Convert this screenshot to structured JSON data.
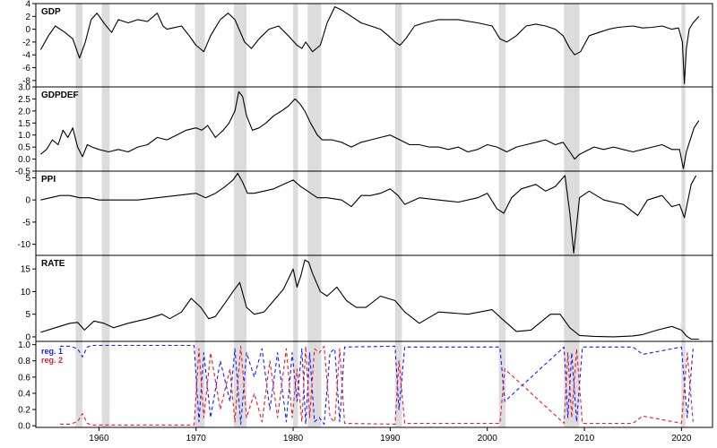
{
  "chart_data": {
    "type": "line",
    "x_axis": {
      "range": [
        1953.5,
        2023.2
      ],
      "ticks": [
        1960,
        1970,
        1980,
        1990,
        2000,
        2010,
        2020
      ],
      "tick_labels": [
        "1960",
        "1970",
        "1980",
        "1990",
        "2000",
        "2010",
        "2020"
      ]
    },
    "recessions": [
      [
        1957.6,
        1958.3
      ],
      [
        1960.3,
        1961.1
      ],
      [
        1969.9,
        1970.9
      ],
      [
        1973.9,
        1975.2
      ],
      [
        1980.0,
        1980.5
      ],
      [
        1981.5,
        1982.9
      ],
      [
        1990.5,
        1991.2
      ],
      [
        2001.2,
        2001.9
      ],
      [
        2007.9,
        2009.5
      ],
      [
        2020.0,
        2020.4
      ]
    ],
    "panels": [
      {
        "name": "GDP",
        "ylim": [
          -9,
          4
        ],
        "yticks": [
          4,
          2,
          0,
          -2,
          -4,
          -6,
          -8
        ],
        "ytick_labels": [
          "4",
          "2",
          "0",
          "-2",
          "-4",
          "-6",
          "-8"
        ],
        "series": [
          {
            "color": "#000000",
            "x": [
              1954.0,
              1954.8,
              1955.5,
              1956.5,
              1957.3,
              1958.0,
              1958.6,
              1959.2,
              1959.8,
              1960.5,
              1961.3,
              1962.0,
              1963.0,
              1964.0,
              1965.0,
              1966.0,
              1966.6,
              1967.0,
              1967.6,
              1968.5,
              1969.3,
              1970.0,
              1970.8,
              1971.5,
              1972.5,
              1973.3,
              1974.0,
              1975.0,
              1975.7,
              1976.5,
              1977.5,
              1978.5,
              1979.5,
              1980.4,
              1980.9,
              1981.3,
              1982.0,
              1982.8,
              1983.5,
              1984.3,
              1985.0,
              1986.0,
              1987.0,
              1988.0,
              1989.0,
              1989.8,
              1990.5,
              1991.0,
              1991.6,
              1992.5,
              1993.5,
              1995.0,
              1997.0,
              1999.0,
              2000.5,
              2001.3,
              2002.0,
              2003.0,
              2004.0,
              2005.0,
              2006.0,
              2007.0,
              2007.8,
              2008.5,
              2009.0,
              2009.6,
              2010.5,
              2011.5,
              2012.5,
              2013.5,
              2015.0,
              2016.0,
              2017.0,
              2018.0,
              2019.0,
              2019.7,
              2020.1,
              2020.3,
              2020.5,
              2020.8,
              2021.2,
              2021.8
            ],
            "y": [
              -3.2,
              -1.0,
              0.5,
              -0.5,
              -1.5,
              -4.5,
              -2.0,
              1.5,
              2.5,
              1.0,
              -0.5,
              1.5,
              1.0,
              1.5,
              1.2,
              2.5,
              0.5,
              0.0,
              0.2,
              0.5,
              -1.0,
              -2.5,
              -3.5,
              -1.0,
              1.5,
              2.5,
              1.5,
              -2.0,
              -3.0,
              -1.5,
              0.0,
              0.5,
              -1.0,
              -2.5,
              -3.0,
              -2.0,
              -3.5,
              -2.5,
              1.0,
              3.5,
              3.0,
              2.0,
              1.0,
              0.5,
              0.0,
              -1.0,
              -2.0,
              -2.5,
              -1.5,
              0.5,
              1.0,
              1.5,
              1.5,
              1.0,
              0.5,
              -1.5,
              -2.0,
              -1.0,
              0.5,
              0.8,
              0.5,
              0.0,
              -1.0,
              -3.0,
              -4.0,
              -3.5,
              -1.0,
              -0.5,
              0.0,
              0.3,
              0.5,
              0.2,
              0.3,
              0.5,
              0.0,
              0.2,
              -2.0,
              -8.5,
              -3.0,
              0.0,
              1.0,
              2.0
            ]
          }
        ]
      },
      {
        "name": "GDPDEF",
        "ylim": [
          -0.5,
          3.0
        ],
        "yticks": [
          3.0,
          2.5,
          2.0,
          1.5,
          1.0,
          0.5,
          0.0,
          -0.5
        ],
        "ytick_labels": [
          "3.0",
          "2.5",
          "2.0",
          "1.5",
          "1.0",
          "0.5",
          "0.0",
          "-0.5"
        ],
        "series": [
          {
            "color": "#000000",
            "x": [
              1954.0,
              1954.6,
              1955.2,
              1955.8,
              1956.3,
              1956.8,
              1957.3,
              1957.8,
              1958.3,
              1958.8,
              1959.3,
              1960.0,
              1961.0,
              1962.0,
              1963.0,
              1964.0,
              1965.0,
              1966.0,
              1967.0,
              1968.0,
              1969.0,
              1970.0,
              1970.6,
              1971.2,
              1972.0,
              1972.8,
              1973.4,
              1974.0,
              1974.4,
              1974.8,
              1975.2,
              1975.8,
              1976.5,
              1977.2,
              1978.0,
              1978.8,
              1979.5,
              1980.2,
              1980.7,
              1981.2,
              1981.8,
              1982.5,
              1983.0,
              1984.0,
              1985.0,
              1986.0,
              1987.0,
              1988.0,
              1989.0,
              1990.0,
              1991.0,
              1992.0,
              1993.0,
              1994.0,
              1995.0,
              1996.0,
              1997.0,
              1998.0,
              1999.0,
              2000.0,
              2001.0,
              2002.0,
              2003.0,
              2004.0,
              2005.0,
              2006.0,
              2007.0,
              2007.8,
              2008.5,
              2009.0,
              2009.5,
              2010.0,
              2011.0,
              2012.0,
              2013.0,
              2014.0,
              2015.0,
              2016.0,
              2017.0,
              2018.0,
              2019.0,
              2019.8,
              2020.2,
              2020.5,
              2020.9,
              2021.3,
              2021.8
            ],
            "y": [
              0.2,
              0.4,
              0.8,
              0.6,
              1.2,
              0.9,
              1.3,
              0.5,
              0.1,
              0.6,
              0.5,
              0.4,
              0.3,
              0.4,
              0.3,
              0.5,
              0.6,
              0.9,
              0.8,
              1.0,
              1.2,
              1.3,
              1.2,
              1.4,
              0.9,
              1.2,
              1.5,
              2.0,
              2.8,
              2.6,
              1.8,
              1.2,
              1.3,
              1.5,
              1.8,
              2.0,
              2.2,
              2.5,
              2.3,
              2.0,
              1.5,
              1.0,
              0.8,
              0.8,
              0.7,
              0.5,
              0.7,
              0.8,
              0.9,
              1.0,
              0.8,
              0.6,
              0.6,
              0.5,
              0.5,
              0.4,
              0.5,
              0.3,
              0.4,
              0.6,
              0.5,
              0.3,
              0.5,
              0.6,
              0.7,
              0.8,
              0.6,
              0.7,
              0.3,
              0.0,
              0.2,
              0.3,
              0.5,
              0.4,
              0.5,
              0.4,
              0.3,
              0.4,
              0.5,
              0.6,
              0.4,
              0.4,
              -0.4,
              0.3,
              0.8,
              1.3,
              1.6
            ]
          }
        ]
      },
      {
        "name": "PPI",
        "ylim": [
          -12.5,
          6.5
        ],
        "yticks": [
          5,
          0,
          -5,
          -10
        ],
        "ytick_labels": [
          "5",
          "0",
          "-5",
          "-10"
        ],
        "series": [
          {
            "color": "#000000",
            "x": [
              1954.0,
              1955.0,
              1956.0,
              1957.0,
              1958.0,
              1959.0,
              1960.0,
              1962.0,
              1964.0,
              1966.0,
              1968.0,
              1970.0,
              1971.0,
              1972.0,
              1973.0,
              1973.8,
              1974.3,
              1974.8,
              1975.3,
              1976.0,
              1977.0,
              1978.0,
              1979.0,
              1980.0,
              1980.8,
              1981.5,
              1982.5,
              1983.5,
              1985.0,
              1986.0,
              1987.0,
              1988.0,
              1989.0,
              1990.0,
              1990.8,
              1991.5,
              1993.0,
              1995.0,
              1997.0,
              1999.0,
              2000.0,
              2001.0,
              2001.7,
              2002.5,
              2003.5,
              2005.0,
              2006.0,
              2007.0,
              2008.0,
              2008.5,
              2008.9,
              2009.5,
              2010.5,
              2012.0,
              2014.0,
              2015.5,
              2016.5,
              2018.0,
              2019.0,
              2019.8,
              2020.3,
              2021.0,
              2021.5
            ],
            "y": [
              0.0,
              0.5,
              1.0,
              1.0,
              0.5,
              0.5,
              0.0,
              0.0,
              0.0,
              0.5,
              1.0,
              1.5,
              0.5,
              1.5,
              3.0,
              4.5,
              6.0,
              4.0,
              1.5,
              1.5,
              2.0,
              2.5,
              3.5,
              4.5,
              3.0,
              2.0,
              0.5,
              0.5,
              0.0,
              -1.5,
              1.0,
              1.0,
              1.5,
              2.5,
              1.0,
              -1.0,
              0.5,
              0.0,
              -0.5,
              0.5,
              1.5,
              -2.0,
              -3.0,
              0.5,
              2.5,
              3.5,
              2.0,
              3.0,
              5.5,
              -3.0,
              -12.0,
              0.5,
              2.0,
              0.0,
              -1.0,
              -3.5,
              0.0,
              1.0,
              -1.5,
              -1.0,
              -4.0,
              3.5,
              5.5
            ]
          }
        ]
      },
      {
        "name": "RATE",
        "ylim": [
          -1,
          18
        ],
        "yticks": [
          15,
          10,
          5,
          0
        ],
        "ytick_labels": [
          "15",
          "10",
          "5",
          "0"
        ],
        "series": [
          {
            "color": "#000000",
            "x": [
              1954.0,
              1955.5,
              1957.0,
              1957.8,
              1958.5,
              1959.5,
              1960.5,
              1961.5,
              1963.0,
              1965.0,
              1966.5,
              1967.3,
              1968.5,
              1969.5,
              1970.5,
              1971.3,
              1972.0,
              1973.0,
              1973.8,
              1974.5,
              1975.2,
              1976.0,
              1977.0,
              1978.0,
              1979.0,
              1980.0,
              1980.4,
              1980.8,
              1981.2,
              1981.6,
              1982.0,
              1982.8,
              1983.5,
              1984.5,
              1985.5,
              1986.5,
              1987.5,
              1989.0,
              1990.5,
              1991.5,
              1993.0,
              1995.0,
              1998.0,
              2000.5,
              2001.5,
              2003.0,
              2004.5,
              2006.5,
              2007.5,
              2008.5,
              2009.5,
              2011.0,
              2013.0,
              2015.0,
              2016.0,
              2017.5,
              2019.0,
              2020.0,
              2020.5,
              2021.0,
              2021.8
            ],
            "y": [
              1.0,
              2.0,
              3.0,
              3.2,
              1.5,
              3.5,
              3.0,
              2.0,
              3.0,
              4.0,
              5.0,
              4.0,
              5.5,
              8.5,
              6.5,
              4.0,
              4.5,
              7.5,
              10.0,
              12.0,
              6.5,
              5.0,
              5.5,
              8.0,
              10.5,
              15.0,
              11.0,
              13.5,
              17.0,
              16.5,
              14.0,
              10.0,
              9.0,
              11.0,
              8.0,
              6.5,
              6.5,
              9.0,
              8.0,
              5.5,
              3.0,
              5.5,
              5.0,
              6.0,
              4.0,
              1.2,
              1.5,
              5.0,
              5.0,
              2.0,
              0.3,
              0.1,
              0.0,
              0.2,
              0.5,
              1.5,
              2.3,
              1.5,
              0.2,
              -0.5,
              -0.5
            ]
          }
        ]
      },
      {
        "name": "",
        "ylim": [
          -0.02,
          1.04
        ],
        "yticks": [
          1.0,
          0.8,
          0.6,
          0.4,
          0.2,
          0.0
        ],
        "ytick_labels": [
          "1.0",
          "0.8",
          "0.6",
          "0.4",
          "0.2",
          "0.0"
        ],
        "legend": [
          "reg. 1",
          "reg. 2"
        ],
        "series": [
          {
            "name": "reg. 1",
            "color": "#1a1aff",
            "dashed": true,
            "x": [
              1956.0,
              1957.0,
              1957.8,
              1958.3,
              1958.8,
              1959.3,
              1969.8,
              1970.3,
              1970.8,
              1971.5,
              1972.5,
              1973.5,
              1974.0,
              1974.6,
              1975.2,
              1976.0,
              1976.8,
              1977.6,
              1978.4,
              1979.3,
              1979.9,
              1980.4,
              1980.9,
              1981.3,
              1981.7,
              1982.2,
              1982.7,
              1983.2,
              1983.8,
              1984.3,
              1984.8,
              1985.3,
              1990.5,
              1990.9,
              1991.5,
              2001.3,
              2001.8,
              2007.9,
              2008.3,
              2008.7,
              2009.2,
              2009.8,
              2015.0,
              2016.0,
              2020.0,
              2020.6,
              2021.2
            ],
            "y": [
              0.98,
              0.98,
              0.95,
              0.85,
              0.97,
              0.99,
              0.99,
              0.05,
              0.9,
              0.1,
              0.8,
              0.3,
              0.95,
              0.02,
              0.9,
              0.6,
              0.95,
              0.2,
              0.9,
              0.05,
              0.9,
              0.3,
              0.95,
              0.02,
              0.9,
              0.05,
              0.1,
              0.02,
              0.9,
              0.95,
              0.05,
              0.97,
              0.98,
              0.2,
              0.97,
              0.97,
              0.3,
              0.97,
              0.1,
              0.9,
              0.05,
              0.97,
              0.97,
              0.88,
              0.97,
              0.1,
              0.95
            ]
          },
          {
            "name": "reg. 2",
            "color": "#e8192c",
            "dashed": true,
            "x": [
              1956.0,
              1957.0,
              1957.8,
              1958.3,
              1958.8,
              1959.3,
              1969.8,
              1970.3,
              1970.8,
              1971.5,
              1972.5,
              1973.5,
              1974.0,
              1974.6,
              1975.2,
              1976.0,
              1976.8,
              1977.6,
              1978.4,
              1979.3,
              1979.9,
              1980.4,
              1980.9,
              1981.3,
              1981.7,
              1982.2,
              1982.7,
              1983.2,
              1983.8,
              1984.3,
              1984.8,
              1985.3,
              1990.5,
              1990.9,
              1991.5,
              2001.3,
              2001.8,
              2007.9,
              2008.3,
              2008.7,
              2009.2,
              2009.8,
              2015.0,
              2016.0,
              2020.0,
              2020.6,
              2021.2
            ],
            "y": [
              0.02,
              0.02,
              0.05,
              0.15,
              0.03,
              0.01,
              0.01,
              0.95,
              0.1,
              0.9,
              0.2,
              0.7,
              0.05,
              0.98,
              0.1,
              0.4,
              0.05,
              0.8,
              0.1,
              0.95,
              0.1,
              0.7,
              0.05,
              0.98,
              0.1,
              0.95,
              0.9,
              0.98,
              0.1,
              0.05,
              0.95,
              0.03,
              0.02,
              0.8,
              0.03,
              0.03,
              0.7,
              0.03,
              0.9,
              0.1,
              0.95,
              0.03,
              0.03,
              0.12,
              0.03,
              0.9,
              0.05
            ]
          }
        ]
      }
    ]
  }
}
